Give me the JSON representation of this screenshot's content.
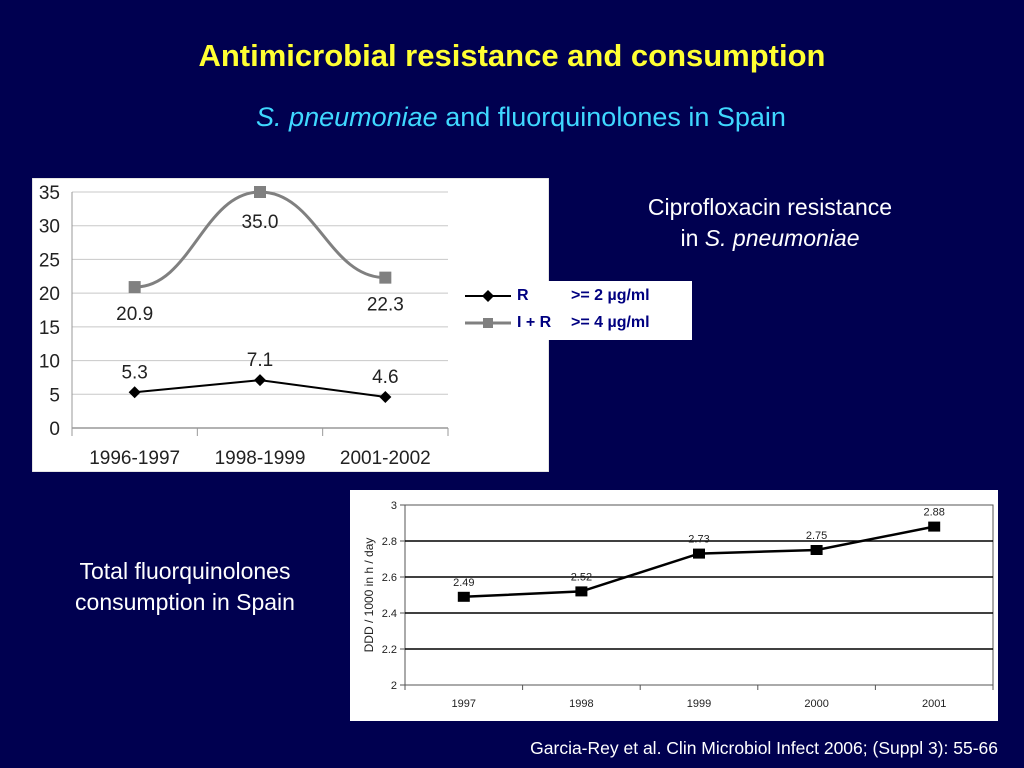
{
  "slide": {
    "title": "Antimicrobial resistance and consumption",
    "subtitle_italic": "S. pneumoniae",
    "subtitle_rest": " and fluorquinolones in Spain",
    "cipro_line1": "Ciprofloxacin resistance",
    "cipro_line2_prefix": "in ",
    "cipro_line2_italic": "S. pneumoniae",
    "consumption_line1": "Total fluorquinolones",
    "consumption_line2": "consumption in Spain",
    "citation": "Garcia-Rey et al. Clin Microbiol Infect 2006; (Suppl 3): 55-66"
  },
  "legend": {
    "items": [
      {
        "code": "R",
        "threshold": ">= 2 µg/ml",
        "color": "#000000",
        "marker": "diamond"
      },
      {
        "code": "I + R",
        "threshold": ">= 4 µg/ml",
        "color": "#808080",
        "marker": "square"
      }
    ]
  },
  "chart_data": [
    {
      "type": "line",
      "categories": [
        "1996-1997",
        "1998-1999",
        "2001-2002"
      ],
      "ylim": [
        0,
        35
      ],
      "yticks": [
        0,
        5,
        10,
        15,
        20,
        25,
        30,
        35
      ],
      "grid": true,
      "series": [
        {
          "name": "R >= 2 µg/ml",
          "values": [
            5.3,
            7.1,
            4.6
          ],
          "labels": [
            "5.3",
            "7.1",
            "4.6"
          ],
          "color": "#000000",
          "marker": "diamond"
        },
        {
          "name": "I + R >= 4 µg/ml",
          "values": [
            20.9,
            35.0,
            22.3
          ],
          "labels": [
            "20.9",
            "35.0",
            "22.3"
          ],
          "color": "#808080",
          "marker": "square",
          "smooth": true
        }
      ]
    },
    {
      "type": "line",
      "categories": [
        "1997",
        "1998",
        "1999",
        "2000",
        "2001"
      ],
      "values": [
        2.49,
        2.52,
        2.73,
        2.75,
        2.88
      ],
      "labels": [
        "2.49",
        "2.52",
        "2.73",
        "2.75",
        "2.88"
      ],
      "ylabel": "DDD / 1000 in h / day",
      "ylim": [
        2,
        3
      ],
      "yticks": [
        "2",
        "2.2",
        "2.4",
        "2.6",
        "2.8",
        "3"
      ],
      "grid": true,
      "color": "#000000",
      "marker": "square"
    }
  ]
}
